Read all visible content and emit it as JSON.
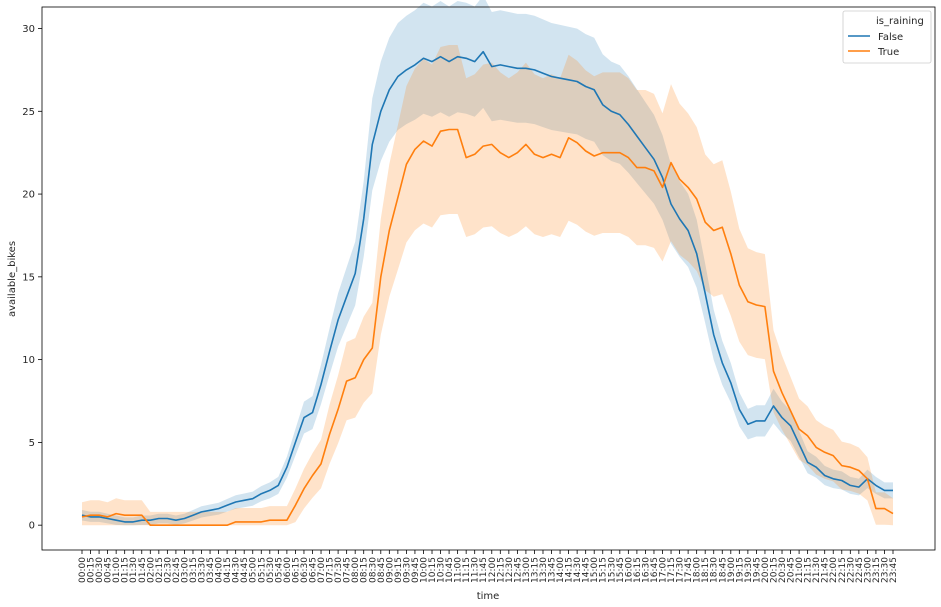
{
  "chart_data": {
    "type": "line",
    "title": "",
    "xlabel": "time",
    "ylabel": "available_bikes",
    "ylim": [
      -1.5,
      31.3
    ],
    "yticks": [
      0,
      5,
      10,
      15,
      20,
      25,
      30
    ],
    "grid": false,
    "legend_title": "is_raining",
    "legend_position": "top-right",
    "x": [
      "00:00",
      "00:15",
      "00:30",
      "00:45",
      "01:00",
      "01:15",
      "01:30",
      "01:45",
      "02:00",
      "02:15",
      "02:30",
      "02:45",
      "03:00",
      "03:15",
      "03:30",
      "03:45",
      "04:00",
      "04:15",
      "04:30",
      "04:45",
      "05:00",
      "05:15",
      "05:30",
      "05:45",
      "06:00",
      "06:15",
      "06:30",
      "06:45",
      "07:00",
      "07:15",
      "07:30",
      "07:45",
      "08:00",
      "08:15",
      "08:30",
      "08:45",
      "09:00",
      "09:15",
      "09:30",
      "09:45",
      "10:00",
      "10:15",
      "10:30",
      "10:45",
      "11:00",
      "11:15",
      "11:30",
      "11:45",
      "12:00",
      "12:15",
      "12:30",
      "12:45",
      "13:00",
      "13:15",
      "13:30",
      "13:45",
      "14:00",
      "14:15",
      "14:30",
      "14:45",
      "15:00",
      "15:15",
      "15:30",
      "15:45",
      "16:00",
      "16:15",
      "16:30",
      "16:45",
      "17:00",
      "17:15",
      "17:30",
      "17:45",
      "18:00",
      "18:15",
      "18:30",
      "18:45",
      "19:00",
      "19:15",
      "19:30",
      "19:45",
      "20:00",
      "20:15",
      "20:30",
      "20:45",
      "21:00",
      "21:15",
      "21:30",
      "21:45",
      "22:00",
      "22:15",
      "22:30",
      "22:45",
      "23:00",
      "23:15",
      "23:30",
      "23:45"
    ],
    "series": [
      {
        "name": "False",
        "color": "#1f77b4",
        "values": [
          0.6,
          0.5,
          0.5,
          0.4,
          0.3,
          0.2,
          0.2,
          0.3,
          0.3,
          0.4,
          0.4,
          0.3,
          0.4,
          0.6,
          0.8,
          0.9,
          1.0,
          1.2,
          1.4,
          1.5,
          1.6,
          1.9,
          2.1,
          2.4,
          3.5,
          5.0,
          6.5,
          6.8,
          8.5,
          10.5,
          12.4,
          13.8,
          15.2,
          18.5,
          23.0,
          25.0,
          26.3,
          27.1,
          27.5,
          27.8,
          28.2,
          28.0,
          28.3,
          28.0,
          28.3,
          28.2,
          28.0,
          28.6,
          27.7,
          27.8,
          27.7,
          27.6,
          27.6,
          27.5,
          27.3,
          27.1,
          27.0,
          26.9,
          26.8,
          26.5,
          26.3,
          25.4,
          25.0,
          24.8,
          24.2,
          23.5,
          22.8,
          22.1,
          21.0,
          19.4,
          18.5,
          17.8,
          16.4,
          14.0,
          11.5,
          9.8,
          8.6,
          7.0,
          6.1,
          6.3,
          6.3,
          7.2,
          6.5,
          6.0,
          4.9,
          3.8,
          3.5,
          3.0,
          2.8,
          2.7,
          2.4,
          2.3,
          2.8,
          2.4,
          2.1,
          2.1
        ]
      },
      {
        "name": "True",
        "color": "#ff7f0e",
        "values": [
          0.5,
          0.6,
          0.6,
          0.5,
          0.7,
          0.6,
          0.6,
          0.6,
          0.0,
          0.0,
          0.0,
          0.0,
          0.0,
          0.0,
          0.0,
          0.0,
          0.0,
          0.0,
          0.2,
          0.2,
          0.2,
          0.2,
          0.3,
          0.3,
          0.3,
          1.2,
          2.2,
          3.0,
          3.7,
          5.5,
          7.0,
          8.7,
          8.9,
          10.0,
          10.7,
          15.0,
          17.8,
          19.8,
          21.8,
          22.7,
          23.2,
          22.9,
          23.8,
          23.9,
          23.9,
          22.2,
          22.4,
          22.9,
          23.0,
          22.5,
          22.2,
          22.5,
          23.0,
          22.4,
          22.2,
          22.4,
          22.2,
          23.4,
          23.1,
          22.6,
          22.3,
          22.5,
          22.5,
          22.5,
          22.2,
          21.6,
          21.6,
          21.4,
          20.4,
          21.9,
          20.9,
          20.4,
          19.7,
          18.3,
          17.8,
          18.0,
          16.4,
          14.5,
          13.5,
          13.3,
          13.2,
          9.3,
          8.0,
          6.9,
          5.8,
          5.4,
          4.7,
          4.4,
          4.2,
          3.6,
          3.5,
          3.3,
          2.8,
          1.0,
          1.0,
          0.7
        ]
      }
    ]
  }
}
